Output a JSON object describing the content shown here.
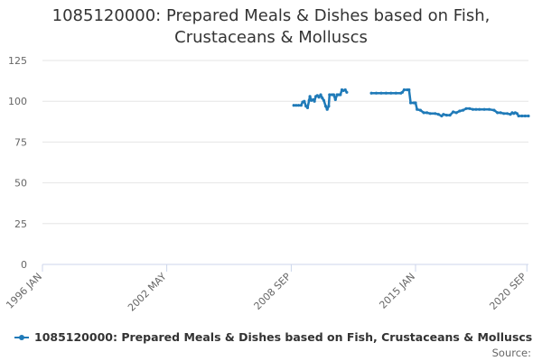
{
  "colors": {
    "series": "#1f7ab8",
    "grid": "#e6e6e6",
    "axis": "#ccd6eb"
  },
  "chart_data": {
    "type": "line",
    "title": "1085120000: Prepared Meals & Dishes based on Fish, Crustaceans & Molluscs",
    "title_lines": [
      "1085120000: Prepared Meals & Dishes based on Fish,",
      "Crustaceans & Molluscs"
    ],
    "xlabel": "",
    "ylabel": "",
    "x_range_years": [
      1996.0,
      2020.75
    ],
    "ylim": [
      0,
      125
    ],
    "y_ticks": [
      0,
      25,
      50,
      75,
      100,
      125
    ],
    "x_ticks": [
      {
        "label": "1996 JAN",
        "year": 1996.0
      },
      {
        "label": "2002 MAY",
        "year": 2002.33
      },
      {
        "label": "2008 SEP",
        "year": 2008.67
      },
      {
        "label": "2015 JAN",
        "year": 2015.0
      },
      {
        "label": "2020 SEP",
        "year": 2020.67
      }
    ],
    "grid": true,
    "legend": "bottom",
    "series": [
      {
        "name": "1085120000: Prepared Meals & Dishes based on Fish, Crustaceans & Molluscs",
        "segments": [
          [
            [
              2008.8,
              97.5
            ],
            [
              2008.92,
              97.5
            ],
            [
              2009.04,
              97.5
            ],
            [
              2009.17,
              97.5
            ],
            [
              2009.25,
              99.5
            ],
            [
              2009.33,
              100.0
            ],
            [
              2009.42,
              97.0
            ],
            [
              2009.5,
              96.0
            ],
            [
              2009.58,
              100.5
            ],
            [
              2009.62,
              103.0
            ],
            [
              2009.7,
              100.5
            ],
            [
              2009.8,
              101.0
            ],
            [
              2009.85,
              100.0
            ],
            [
              2009.92,
              103.0
            ],
            [
              2010.0,
              103.5
            ],
            [
              2010.08,
              102.5
            ],
            [
              2010.17,
              104.0
            ],
            [
              2010.25,
              102.0
            ],
            [
              2010.33,
              100.5
            ],
            [
              2010.42,
              97.0
            ],
            [
              2010.5,
              95.0
            ],
            [
              2010.58,
              97.0
            ],
            [
              2010.62,
              104.0
            ],
            [
              2010.75,
              104.0
            ],
            [
              2010.83,
              104.0
            ],
            [
              2010.92,
              101.0
            ],
            [
              2011.0,
              104.0
            ],
            [
              2011.08,
              104.0
            ],
            [
              2011.17,
              104.0
            ],
            [
              2011.25,
              107.0
            ],
            [
              2011.33,
              106.5
            ],
            [
              2011.42,
              107.0
            ],
            [
              2011.5,
              105.5
            ]
          ],
          [
            [
              2012.75,
              105.0
            ],
            [
              2013.0,
              105.0
            ],
            [
              2013.25,
              105.0
            ],
            [
              2013.5,
              105.0
            ],
            [
              2013.75,
              105.0
            ],
            [
              2014.0,
              105.0
            ],
            [
              2014.25,
              105.0
            ],
            [
              2014.33,
              105.5
            ],
            [
              2014.42,
              107.0
            ],
            [
              2014.58,
              107.0
            ],
            [
              2014.67,
              107.0
            ],
            [
              2014.75,
              99.0
            ],
            [
              2014.92,
              99.0
            ],
            [
              2015.0,
              99.0
            ],
            [
              2015.08,
              95.0
            ],
            [
              2015.25,
              94.5
            ],
            [
              2015.42,
              93.0
            ],
            [
              2015.58,
              93.0
            ],
            [
              2015.75,
              92.5
            ],
            [
              2016.0,
              92.5
            ],
            [
              2016.17,
              92.0
            ],
            [
              2016.33,
              91.0
            ],
            [
              2016.42,
              92.0
            ],
            [
              2016.58,
              91.5
            ],
            [
              2016.75,
              91.5
            ],
            [
              2016.92,
              93.5
            ],
            [
              2017.08,
              93.0
            ],
            [
              2017.25,
              94.0
            ],
            [
              2017.42,
              94.5
            ],
            [
              2017.58,
              95.5
            ],
            [
              2017.75,
              95.5
            ],
            [
              2017.92,
              95.0
            ],
            [
              2018.08,
              95.0
            ],
            [
              2018.25,
              95.0
            ],
            [
              2018.5,
              95.0
            ],
            [
              2018.75,
              95.0
            ],
            [
              2019.0,
              94.5
            ],
            [
              2019.17,
              93.0
            ],
            [
              2019.33,
              93.0
            ],
            [
              2019.5,
              92.5
            ],
            [
              2019.67,
              92.5
            ],
            [
              2019.83,
              92.0
            ],
            [
              2019.92,
              93.0
            ],
            [
              2020.0,
              92.5
            ],
            [
              2020.08,
              93.0
            ],
            [
              2020.17,
              92.5
            ],
            [
              2020.25,
              91.0
            ],
            [
              2020.42,
              91.0
            ],
            [
              2020.58,
              91.0
            ],
            [
              2020.75,
              91.0
            ]
          ]
        ]
      }
    ]
  },
  "legend": {
    "label": "1085120000: Prepared Meals & Dishes based on Fish, Crustaceans & Molluscs"
  },
  "source": {
    "label": "Source:"
  }
}
